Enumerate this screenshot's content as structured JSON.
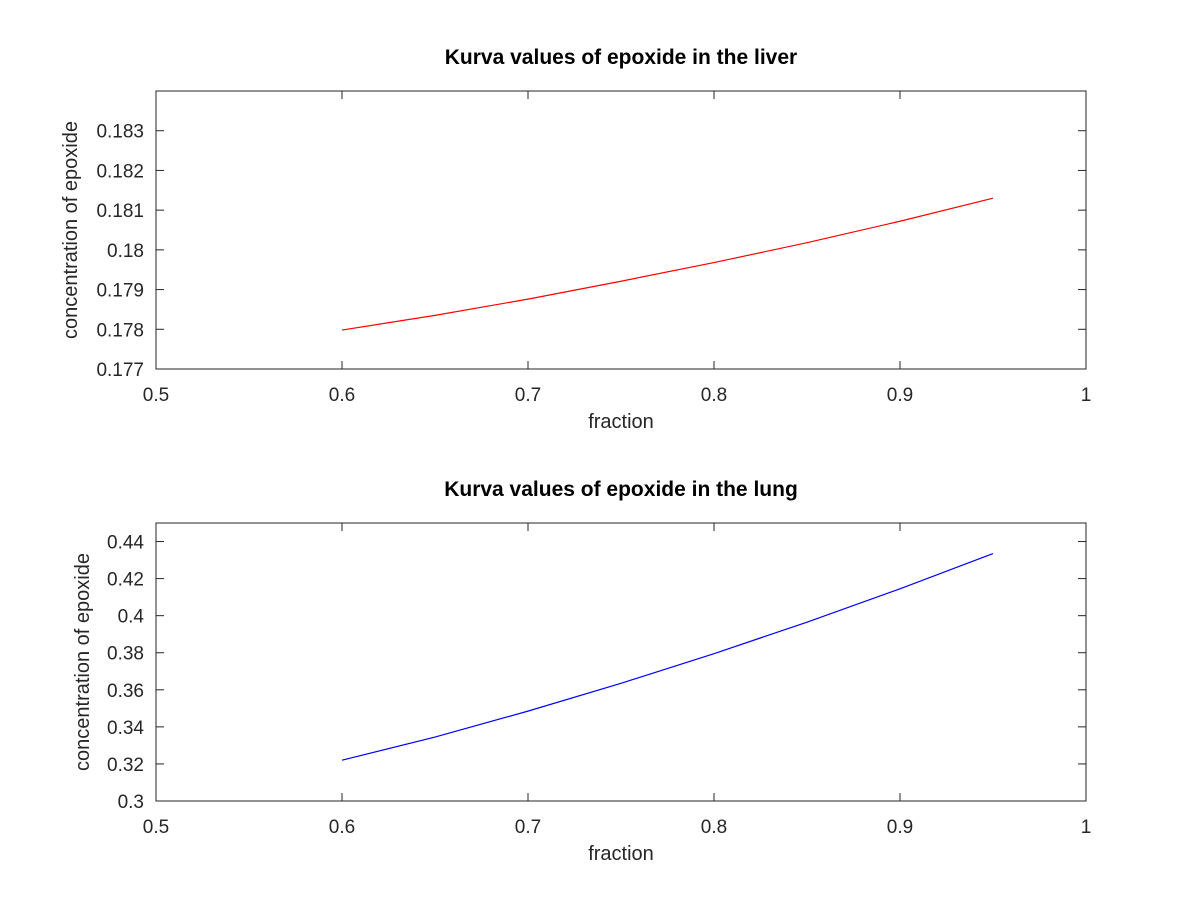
{
  "chart_data": [
    {
      "type": "line",
      "title": "Kurva values of epoxide in the liver",
      "xlabel": "fraction",
      "ylabel": "concentration of epoxide",
      "xlim": [
        0.5,
        1
      ],
      "ylim": [
        0.177,
        0.184
      ],
      "x_ticks": [
        "0.5",
        "0.6",
        "0.7",
        "0.8",
        "0.9",
        "1"
      ],
      "y_ticks": [
        "0.177",
        "0.178",
        "0.179",
        "0.18",
        "0.181",
        "0.182",
        "0.183"
      ],
      "grid": false,
      "series": [
        {
          "color": "#ff0000",
          "x": [
            0.6,
            0.65,
            0.7,
            0.75,
            0.8,
            0.85,
            0.9,
            0.95
          ],
          "y": [
            0.17798,
            0.17835,
            0.17876,
            0.17921,
            0.17968,
            0.18018,
            0.18072,
            0.1813
          ]
        }
      ]
    },
    {
      "type": "line",
      "title": "Kurva values of epoxide in the lung",
      "xlabel": "fraction",
      "ylabel": "concentration of epoxide",
      "xlim": [
        0.5,
        1
      ],
      "ylim": [
        0.3,
        0.45
      ],
      "x_ticks": [
        "0.5",
        "0.6",
        "0.7",
        "0.8",
        "0.9",
        "1"
      ],
      "y_ticks": [
        "0.3",
        "0.32",
        "0.34",
        "0.36",
        "0.38",
        "0.4",
        "0.42",
        "0.44"
      ],
      "grid": false,
      "series": [
        {
          "color": "#0000ff",
          "x": [
            0.6,
            0.65,
            0.7,
            0.75,
            0.8,
            0.85,
            0.9,
            0.95
          ],
          "y": [
            0.322,
            0.3345,
            0.3485,
            0.3635,
            0.3795,
            0.3965,
            0.4145,
            0.4335
          ]
        }
      ]
    }
  ]
}
